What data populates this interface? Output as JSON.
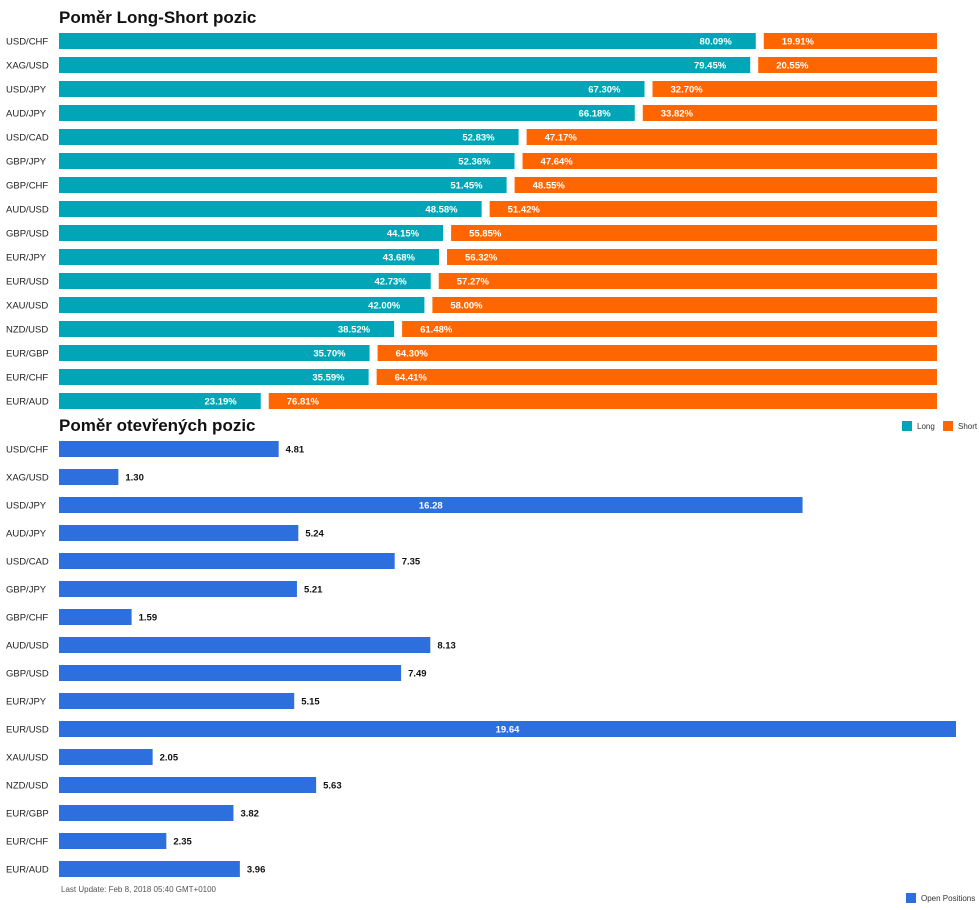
{
  "chart_data": [
    {
      "type": "bar",
      "orientation": "horizontal",
      "stacked": true,
      "title": "Poměr Long-Short pozic",
      "categories": [
        "USD/CHF",
        "XAG/USD",
        "USD/JPY",
        "AUD/JPY",
        "USD/CAD",
        "GBP/JPY",
        "GBP/CHF",
        "AUD/USD",
        "GBP/USD",
        "EUR/JPY",
        "EUR/USD",
        "XAU/USD",
        "NZD/USD",
        "EUR/GBP",
        "EUR/CHF",
        "EUR/AUD"
      ],
      "series": [
        {
          "name": "Long",
          "color": "#00a6b8",
          "values": [
            80.09,
            79.45,
            67.3,
            66.18,
            52.83,
            52.36,
            51.45,
            48.58,
            44.15,
            43.68,
            42.73,
            42.0,
            38.52,
            35.7,
            35.59,
            23.19
          ],
          "labels": [
            "80.09%",
            "79.45%",
            "67.30%",
            "66.18%",
            "52.83%",
            "52.36%",
            "51.45%",
            "48.58%",
            "44.15%",
            "43.68%",
            "42.73%",
            "42.00%",
            "38.52%",
            "35.70%",
            "35.59%",
            "23.19%"
          ]
        },
        {
          "name": "Short",
          "color": "#ff6600",
          "values": [
            19.91,
            20.55,
            32.7,
            33.82,
            47.17,
            47.64,
            48.55,
            51.42,
            55.85,
            56.32,
            57.27,
            58.0,
            61.48,
            64.3,
            64.41,
            76.81
          ],
          "labels": [
            "19.91%",
            "20.55%",
            "32.70%",
            "33.82%",
            "47.17%",
            "47.64%",
            "48.55%",
            "51.42%",
            "55.85%",
            "56.32%",
            "57.27%",
            "58.00%",
            "61.48%",
            "64.30%",
            "64.41%",
            "76.81%"
          ]
        }
      ],
      "xlim": [
        0,
        100
      ],
      "legend": "bottom-right"
    },
    {
      "type": "bar",
      "orientation": "horizontal",
      "title": "Poměr otevřených pozic",
      "categories": [
        "USD/CHF",
        "XAG/USD",
        "USD/JPY",
        "AUD/JPY",
        "USD/CAD",
        "GBP/JPY",
        "GBP/CHF",
        "AUD/USD",
        "GBP/USD",
        "EUR/JPY",
        "EUR/USD",
        "XAU/USD",
        "NZD/USD",
        "EUR/GBP",
        "EUR/CHF",
        "EUR/AUD"
      ],
      "series": [
        {
          "name": "Open Positions",
          "color": "#2e6fde",
          "values": [
            4.81,
            1.3,
            16.28,
            5.24,
            7.35,
            5.21,
            1.59,
            8.13,
            7.49,
            5.15,
            19.64,
            2.05,
            5.63,
            3.82,
            2.35,
            3.96
          ],
          "labels": [
            "4.81",
            "1.30",
            "16.28",
            "5.24",
            "7.35",
            "5.21",
            "1.59",
            "8.13",
            "7.49",
            "5.15",
            "19.64",
            "2.05",
            "5.63",
            "3.82",
            "2.35",
            "3.96"
          ]
        }
      ],
      "xlim": [
        0,
        19.64
      ],
      "legend": "bottom-right"
    }
  ],
  "last_update": "Last Update: Feb 8, 2018 05:40 GMT+0100"
}
